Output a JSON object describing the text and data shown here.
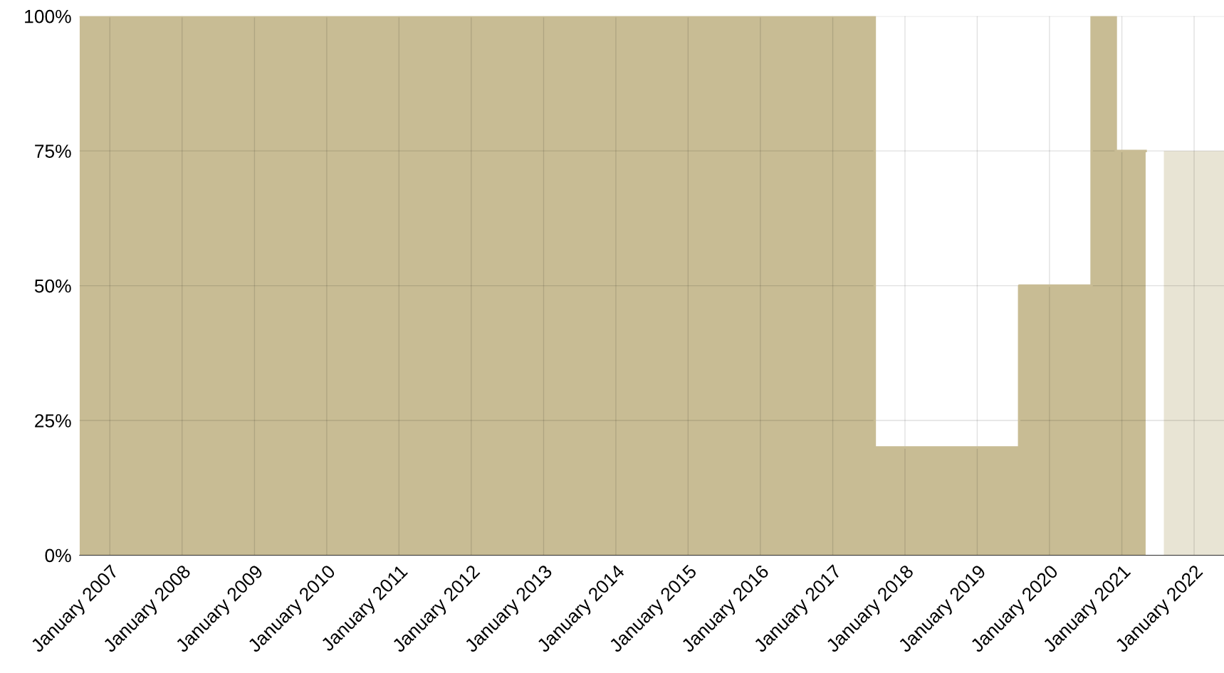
{
  "chart_data": {
    "type": "step",
    "series": [
      {
        "color": "#c8bc94",
        "x": [
          "2006-08",
          "2017-08",
          "2019-08",
          "2020-08",
          "2020-12",
          "2021-05"
        ],
        "values": [
          100,
          20,
          50,
          100,
          75,
          75
        ]
      },
      {
        "type": "area",
        "color": "#e8e4d4",
        "x": [
          "2021-08",
          "2022-06"
        ],
        "values": [
          75,
          75
        ]
      }
    ],
    "xlim": [
      "2006-08",
      "2022-06"
    ],
    "xticks": [
      {
        "value": "2007-01",
        "label": "January 2007"
      },
      {
        "value": "2008-01",
        "label": "January 2008"
      },
      {
        "value": "2009-01",
        "label": "January 2009"
      },
      {
        "value": "2010-01",
        "label": "January 2010"
      },
      {
        "value": "2011-01",
        "label": "January 2011"
      },
      {
        "value": "2012-01",
        "label": "January 2012"
      },
      {
        "value": "2013-01",
        "label": "January 2013"
      },
      {
        "value": "2014-01",
        "label": "January 2014"
      },
      {
        "value": "2015-01",
        "label": "January 2015"
      },
      {
        "value": "2016-01",
        "label": "January 2016"
      },
      {
        "value": "2017-01",
        "label": "January 2017"
      },
      {
        "value": "2018-01",
        "label": "January 2018"
      },
      {
        "value": "2019-01",
        "label": "January 2019"
      },
      {
        "value": "2020-01",
        "label": "January 2020"
      },
      {
        "value": "2021-01",
        "label": "January 2021"
      },
      {
        "value": "2022-01",
        "label": "January 2022"
      }
    ],
    "ylim": [
      0,
      100
    ],
    "yticks": [
      {
        "value": 0,
        "label": "0%"
      },
      {
        "value": 25,
        "label": "25%"
      },
      {
        "value": 50,
        "label": "50%"
      },
      {
        "value": 75,
        "label": "75%"
      },
      {
        "value": 100,
        "label": "100%"
      }
    ],
    "grid": true
  }
}
